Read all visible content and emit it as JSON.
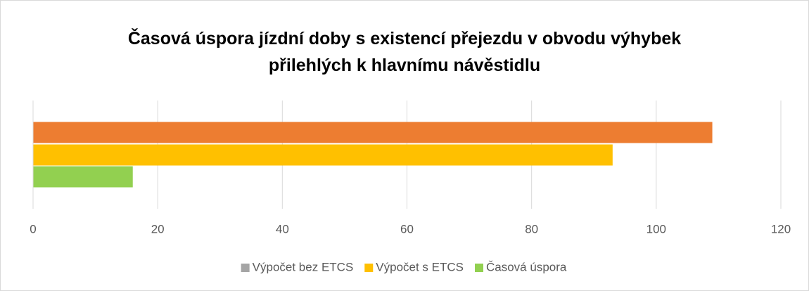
{
  "chart_data": {
    "type": "hbar",
    "title": "Časová úspora jízdní doby s existencí přejezdu v obvodu výhybek přilehlých k hlavnímu návěstidlu",
    "categories": [
      null
    ],
    "series": [
      {
        "name": "Výpočet bez ETCS",
        "color": "#ed7d31",
        "legend_color": "#a5a5a5",
        "values": [
          109
        ]
      },
      {
        "name": "Výpočet s ETCS",
        "color": "#ffc000",
        "values": [
          93
        ]
      },
      {
        "name": "Časová úspora",
        "color": "#92d050",
        "values": [
          16
        ]
      }
    ],
    "xlim": [
      0,
      120
    ],
    "xticks": [
      0,
      20,
      40,
      60,
      80,
      100,
      120
    ],
    "grid": true,
    "legend": "bottom"
  }
}
